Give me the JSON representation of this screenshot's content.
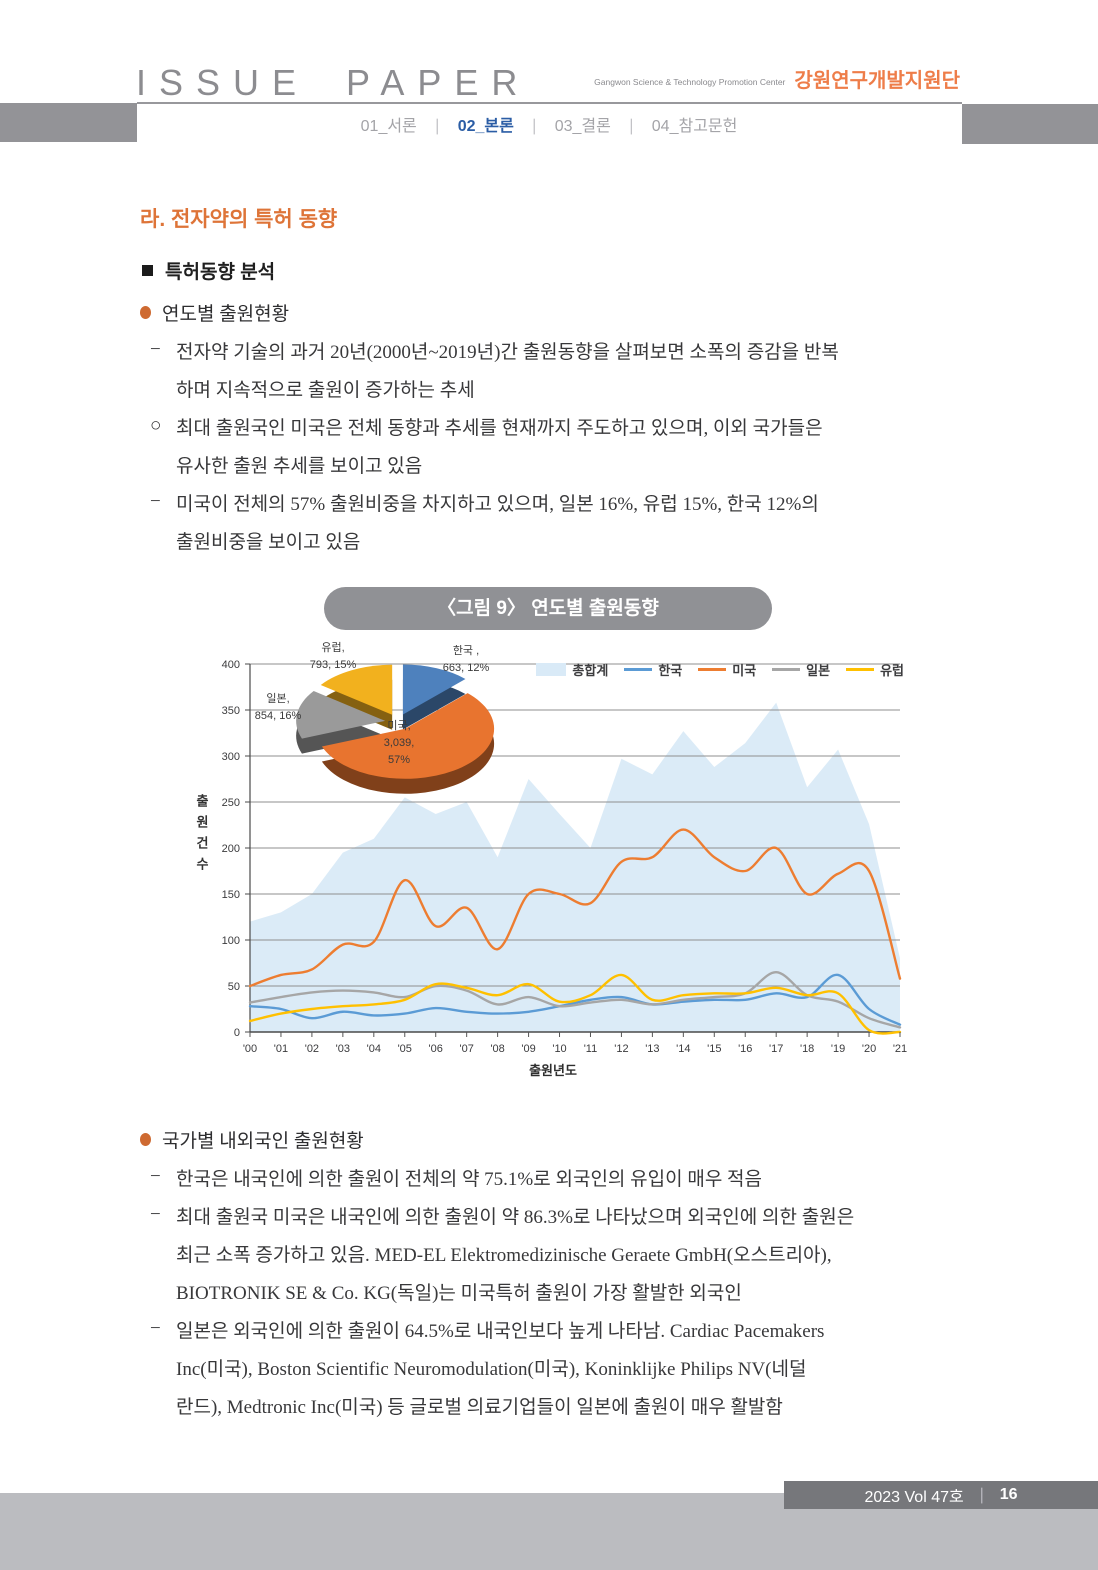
{
  "header": {
    "brand": "ISSUE PAPER",
    "org_en": "Gangwon Science & Technology Promotion Center",
    "org_kr": "강원연구개발지원단",
    "nav": [
      {
        "label": "01_서론",
        "active": false
      },
      {
        "label": "02_본론",
        "active": true
      },
      {
        "label": "03_결론",
        "active": false
      },
      {
        "label": "04_참고문헌",
        "active": false
      }
    ],
    "nav_separator": "∣"
  },
  "theme": {
    "accent_orange": "#DE7438",
    "nav_active_blue": "#2B5DA5",
    "header_gray": "#939397",
    "caption_pill_gray": "#909195",
    "footer_bar_gray": "#76777B",
    "footer_block_gray": "#BBBCC0"
  },
  "body": {
    "section_title": "라. 전자약의 특허 동향",
    "subsection_title": "특허동향 분석",
    "bullet1": "연도별 출원현황",
    "para1_lines": [
      {
        "marker": "−",
        "text": "전자약 기술의 과거 20년(2000년~2019년)간 출원동향을 살펴보면 소폭의 증감을 반복"
      },
      {
        "marker": "",
        "text": "하며 지속적으로 출원이 증가하는 추세"
      },
      {
        "marker": "○",
        "text": "최대 출원국인 미국은 전체 동향과 추세를 현재까지 주도하고 있으며, 이외 국가들은"
      },
      {
        "marker": "",
        "text": "유사한 출원 추세를 보이고 있음"
      },
      {
        "marker": "−",
        "text": "미국이 전체의 57% 출원비중을 차지하고 있으며, 일본 16%, 유럽 15%, 한국 12%의"
      },
      {
        "marker": "",
        "text": "출원비중을 보이고 있음"
      }
    ],
    "bullet2": "국가별 내외국인 출원현황",
    "para2_lines": [
      {
        "marker": "−",
        "text": "한국은 내국인에 의한 출원이 전체의 약 75.1%로 외국인의 유입이 매우 적음"
      },
      {
        "marker": "−",
        "text": "최대 출원국 미국은 내국인에 의한 출원이 약 86.3%로 나타났으며 외국인에 의한 출원은"
      },
      {
        "marker": "",
        "text": "최근 소폭 증가하고 있음. MED-EL Elektromedizinische Geraete GmbH(오스트리아),"
      },
      {
        "marker": "",
        "text": "BIOTRONIK SE & Co. KG(독일)는 미국특허 출원이 가장 활발한 외국인"
      },
      {
        "marker": "−",
        "text": "일본은 외국인에 의한 출원이 64.5%로 내국인보다 높게 나타남. Cardiac Pacemakers"
      },
      {
        "marker": "",
        "text": "Inc(미국), Boston Scientific Neuromodulation(미국), Koninklijke Philips NV(네덜"
      },
      {
        "marker": "",
        "text": "란드), Medtronic Inc(미국) 등 글로벌 의료기업들이 일본에 출원이 매우 활발함"
      }
    ]
  },
  "figure": {
    "caption": "〈그림 9〉 연도별 출원동향"
  },
  "chart_data": [
    {
      "type": "pie",
      "labels": [
        "한국",
        "미국",
        "일본",
        "유럽"
      ],
      "values": [
        663,
        3039,
        854,
        793
      ],
      "percent_labels": [
        "12%",
        "57%",
        "16%",
        "15%"
      ],
      "colors": [
        "#4E81BD",
        "#E8742F",
        "#9A9A9A",
        "#F2B11E"
      ],
      "exploded": true,
      "label_lines": {
        "korea": [
          "한국 ,",
          "663, 12%"
        ],
        "usa": [
          "미국,",
          "3,039,",
          "57%"
        ],
        "japan": [
          "일본,",
          "854, 16%"
        ],
        "europe": [
          "유럽,",
          "793, 15%"
        ]
      }
    },
    {
      "type": "line",
      "x": [
        "'00",
        "'01",
        "'02",
        "'03",
        "'04",
        "'05",
        "'06",
        "'07",
        "'08",
        "'09",
        "'10",
        "'11",
        "'12",
        "'13",
        "'14",
        "'15",
        "'16",
        "'17",
        "'18",
        "'19",
        "'20",
        "'21"
      ],
      "xlabel": "출원년도",
      "ylabel": "출원건수",
      "ylim": [
        0,
        400
      ],
      "ytick_step": 50,
      "grid": true,
      "legend_position": "top-right",
      "series": [
        {
          "name": "총합계",
          "style": "area",
          "color": "#D9EAF7",
          "values": [
            120,
            130,
            150,
            195,
            210,
            255,
            237,
            250,
            190,
            275,
            237,
            200,
            297,
            280,
            327,
            288,
            314,
            358,
            266,
            307,
            226,
            80
          ]
        },
        {
          "name": "한국",
          "style": "line",
          "color": "#5B9BD5",
          "values": [
            28,
            25,
            15,
            22,
            18,
            20,
            26,
            22,
            20,
            22,
            28,
            35,
            38,
            30,
            33,
            35,
            35,
            42,
            38,
            62,
            25,
            8
          ]
        },
        {
          "name": "미국",
          "style": "line",
          "color": "#ED7D31",
          "values": [
            50,
            62,
            68,
            95,
            98,
            165,
            115,
            135,
            90,
            150,
            150,
            140,
            185,
            190,
            220,
            190,
            175,
            200,
            150,
            172,
            175,
            58
          ]
        },
        {
          "name": "일본",
          "style": "line",
          "color": "#A6A6A6",
          "values": [
            32,
            38,
            43,
            45,
            43,
            38,
            50,
            45,
            30,
            38,
            28,
            32,
            35,
            30,
            35,
            38,
            42,
            65,
            40,
            33,
            15,
            5
          ]
        },
        {
          "name": "유럽",
          "style": "line",
          "color": "#FFC000",
          "values": [
            12,
            20,
            25,
            28,
            30,
            35,
            52,
            48,
            40,
            52,
            33,
            40,
            62,
            35,
            40,
            42,
            42,
            48,
            40,
            42,
            2,
            0
          ]
        }
      ]
    }
  ],
  "footer": {
    "issue": "2023 Vol 47호",
    "separator": "∣",
    "page": "16"
  }
}
